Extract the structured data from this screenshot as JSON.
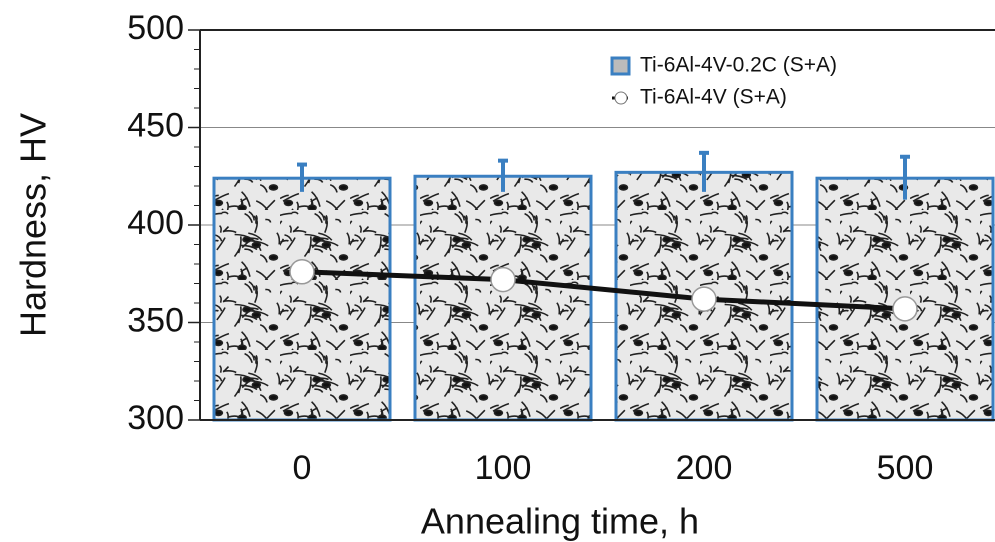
{
  "chart_data": {
    "type": "bar",
    "x_label": "Annealing time, h",
    "y_label": "Hardness, HV",
    "categories": [
      "0",
      "100",
      "200",
      "500"
    ],
    "series": [
      {
        "name": "Ti-6Al-4V-0.2C (S+A)",
        "type": "bar",
        "color": "#3a7fc1",
        "values": [
          424,
          425,
          427,
          424
        ],
        "errors": [
          7,
          8,
          10,
          11
        ]
      },
      {
        "name": "Ti-6Al-4V (S+A)",
        "type": "line",
        "color": "#111111",
        "values": [
          376,
          372,
          362,
          357
        ]
      }
    ],
    "ylim": [
      300,
      500
    ],
    "yticks": [
      300,
      350,
      400,
      450,
      500
    ],
    "yminor_ticks": [
      310,
      320,
      330,
      340,
      360,
      370,
      380,
      390,
      410,
      420,
      430,
      440,
      460,
      470,
      480,
      490
    ],
    "grid": true,
    "legend": "upper right"
  }
}
